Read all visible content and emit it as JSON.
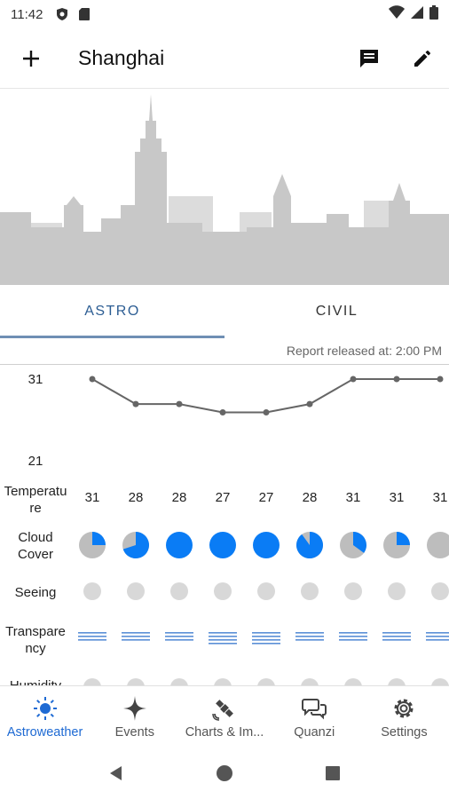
{
  "status": {
    "time": "11:42"
  },
  "toolbar": {
    "title": "Shanghai"
  },
  "tabs": [
    {
      "label": "ASTRO",
      "active": true
    },
    {
      "label": "CIVIL",
      "active": false
    }
  ],
  "report": {
    "text": "Report released at: 2:00 PM"
  },
  "temperature": {
    "axis_max": "31",
    "axis_min": "21",
    "values": [
      31,
      28,
      28,
      27,
      27,
      28,
      31,
      31,
      31
    ]
  },
  "rows": {
    "temperature": {
      "label": "Temperatu re",
      "values": [
        "31",
        "28",
        "28",
        "27",
        "27",
        "28",
        "31",
        "31",
        "31"
      ]
    },
    "cloud_cover": {
      "label": "Cloud Cover",
      "fractions": [
        0.25,
        0.7,
        1.0,
        1.0,
        1.0,
        0.9,
        0.35,
        0.25,
        0.0
      ]
    },
    "seeing": {
      "label": "Seeing"
    },
    "transparency": {
      "label": "Transpare ncy",
      "levels": [
        2,
        2,
        2,
        3,
        3,
        2,
        2,
        2,
        2
      ]
    },
    "humidity": {
      "label": "Humidity"
    }
  },
  "nav": [
    {
      "label": "Astroweather",
      "icon": "sun-icon",
      "active": true
    },
    {
      "label": "Events",
      "icon": "sparkle-icon",
      "active": false
    },
    {
      "label": "Charts & Im...",
      "icon": "satellite-icon",
      "active": false
    },
    {
      "label": "Quanzi",
      "icon": "chat-bubbles-icon",
      "active": false
    },
    {
      "label": "Settings",
      "icon": "gear-icon",
      "active": false
    }
  ],
  "colors": {
    "accent": "#1e6ad3",
    "cloud_fill": "#0a7cf5",
    "cloud_bg": "#bdbdbd",
    "dot": "#d8d8d8",
    "skyline": "#c8c8c8",
    "tab_active": "#2c5d93"
  }
}
